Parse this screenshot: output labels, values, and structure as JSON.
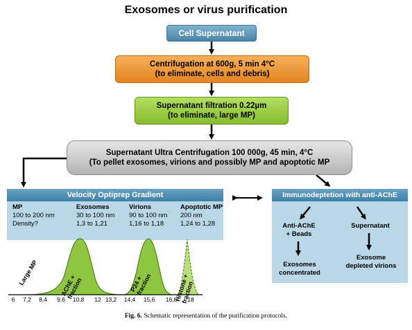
{
  "title": "Exosomes or virus purification",
  "steps": {
    "supernatant": "Cell Supernatant",
    "centrifugation_line1": "Centrifugation at 600g, 5 min 4°C",
    "centrifugation_line2": "(to eliminate, cells and debris)",
    "filtration_line1": "Supernatant filtration 0.22µm",
    "filtration_line2": "(to eliminate, large MP)",
    "ultra_line1": "Supernatant Ultra Centrifugation 100 000g, 45 min, 4°C",
    "ultra_line2": "(To pellet exosomes, virions and possibly MP and apoptotic MP"
  },
  "gradient_panel": {
    "header": "Velocity Optiprep Gradient",
    "columns": [
      {
        "heading": "MP",
        "size": "100 to 200 nm",
        "density": "Density?"
      },
      {
        "heading": "Exosomes",
        "size": "30 to 100 nm",
        "density": "1,3 to 1,21"
      },
      {
        "heading": "Virions",
        "size": "90 to 100 nm",
        "density": "1,16 to 1,18"
      },
      {
        "heading": "Apoptotic MP",
        "size": "200 nm",
        "density": "1,24 to 1,28"
      }
    ]
  },
  "immuno_panel": {
    "header": "Immunodeptetion with anti-AChE",
    "left_step_line1": "Anti-AChE",
    "left_step_line2": "+ Beads",
    "right_step": "Supernatant",
    "left_result_line1": "Exosomes",
    "left_result_line2": "concentrated",
    "right_result_line1": "Exosome",
    "right_result_line2": "depleted virions"
  },
  "fraction_plot": {
    "peak_labels": {
      "large_mp": "Large MP",
      "ache": "AChE + fraction",
      "p24": "P24 + fraction",
      "histone": "Histone + fraction"
    },
    "ticks": [
      "6",
      "7,2",
      "8,4",
      "9,6",
      "10,8",
      "12",
      "13,2",
      "14,4",
      "15,6",
      "16,8",
      "18"
    ],
    "colors": {
      "peak_fill": "#8fc641",
      "peak_stroke": "#3f6f10"
    }
  },
  "caption_bold": "Fig. 6.",
  "caption_text": " Schematic representation of the purification protocols."
}
